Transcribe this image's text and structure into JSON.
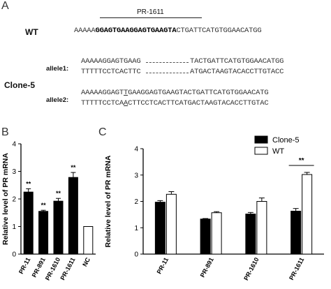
{
  "panel_a": {
    "letter": "A",
    "pr_label": "PR-1611",
    "wt_label": "WT",
    "wt_seq_pre": "AAAAA",
    "wt_seq_bold": "GGAGTGAAGGAGTGAAGTA",
    "wt_seq_post": "CTGATTCATGTGGAACATGG",
    "clone_label": "Clone-5",
    "allele1_label": "allele1:",
    "allele1_top_a": "AAAAAGGAGTGAAG",
    "allele1_top_b": "TACTGATTCATGTGGAACATGG",
    "allele1_bot_a": "TTTTTCCTCACTTC",
    "allele1_bot_b": "ATGACTAAGTACACCTTGTACC",
    "allele2_label": "allele2:",
    "allele2_top_a": "AAAAAGGAGT",
    "allele2_top_ins": "T",
    "allele2_top_b": "GAAGGAGTGAAGTACTGATTCATGTGGAACATG",
    "allele2_bot_a": "TTTTTCCTCA",
    "allele2_bot_ins": "A",
    "allele2_bot_b": "CTTCCTCACTTCATGACTAAGTACACCTTGTAC"
  },
  "panel_b": {
    "letter": "B"
  },
  "panel_c": {
    "letter": "C"
  },
  "chart_data": [
    {
      "type": "bar",
      "panel": "B",
      "ylabel": "Relative level of PR mRNA",
      "ylim": [
        0,
        4
      ],
      "yticks": [
        "0",
        "1",
        "2",
        "3",
        "4"
      ],
      "categories": [
        "PR-11",
        "PR-891",
        "PR-1610",
        "PR-1611",
        "NC"
      ],
      "values": [
        2.25,
        1.55,
        1.92,
        2.78,
        1.0
      ],
      "errors": [
        0.12,
        0.04,
        0.1,
        0.18,
        0.0
      ],
      "fills": [
        "#000000",
        "#000000",
        "#000000",
        "#000000",
        "#ffffff"
      ],
      "annotations": [
        "**",
        "**",
        "**",
        "**",
        ""
      ]
    },
    {
      "type": "bar",
      "panel": "C",
      "ylabel": "Relative level of PR mRNA",
      "ylim": [
        0,
        4
      ],
      "yticks": [
        "0",
        "1",
        "2",
        "3",
        "4"
      ],
      "categories": [
        "PR-11",
        "PR-891",
        "PR-1610",
        "PR-1611"
      ],
      "series": [
        {
          "name": "Clone-5",
          "color": "#000000",
          "values": [
            1.97,
            1.33,
            1.52,
            1.63
          ],
          "errors": [
            0.06,
            0.02,
            0.06,
            0.1
          ]
        },
        {
          "name": "WT",
          "color": "#ffffff",
          "values": [
            2.27,
            1.57,
            2.0,
            3.02
          ],
          "errors": [
            0.1,
            0.04,
            0.13,
            0.08
          ]
        }
      ],
      "significance": {
        "category": "PR-1611",
        "label": "**"
      },
      "legend": "top-right"
    }
  ]
}
